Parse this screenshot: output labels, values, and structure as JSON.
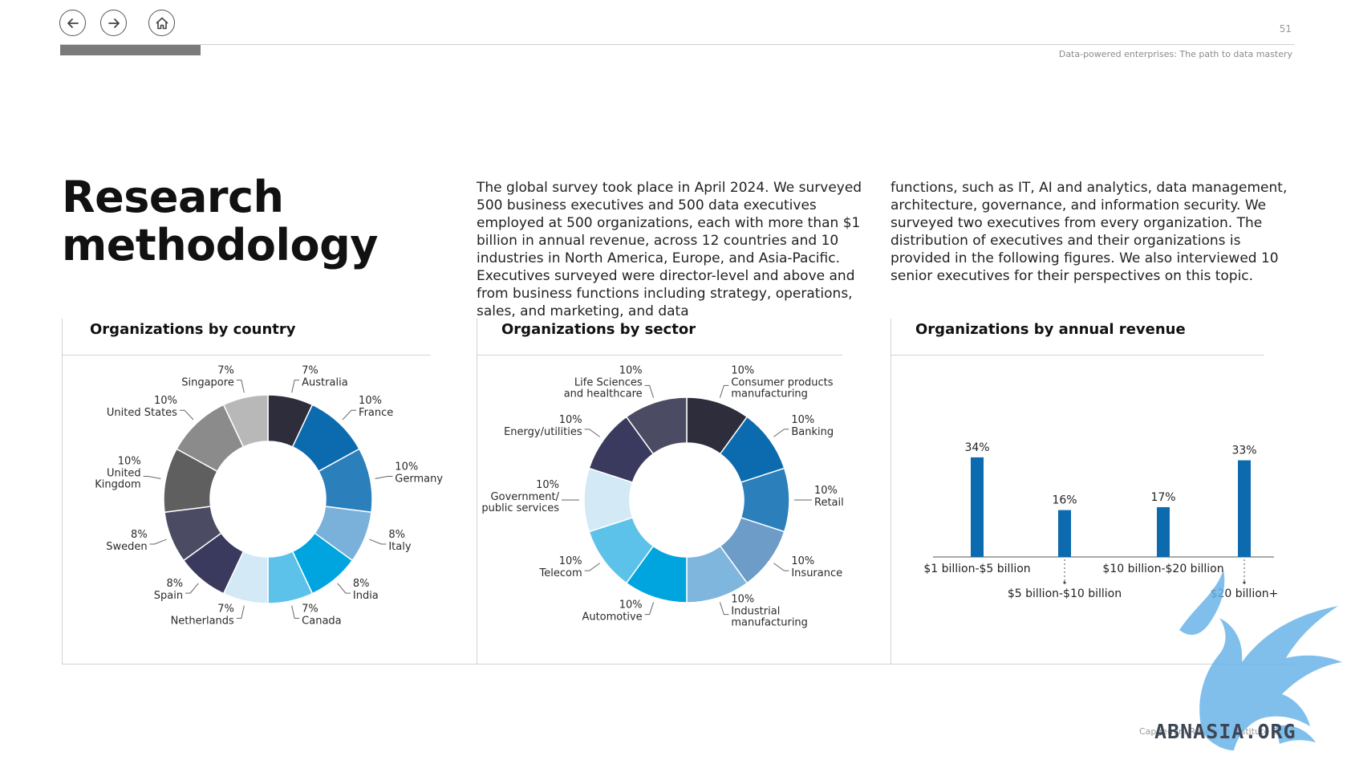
{
  "header": {
    "page_number": "51",
    "running_title": "Data-powered enterprises: The path to data mastery"
  },
  "nav": {
    "back_icon": "arrow-left-icon",
    "forward_icon": "arrow-right-icon",
    "home_icon": "home-icon"
  },
  "page_title_line1": "Research",
  "page_title_line2": "methodology",
  "intro": {
    "col1": "The global survey took place in April 2024. We surveyed 500 business executives and 500 data executives employed at 500 organizations, each with more than $1 billion in annual revenue, across 12 countries and 10 industries in North America, Europe, and Asia-Pacific. Executives surveyed were director-level and above and from business functions including strategy, operations, sales, and marketing, and data",
    "col2": "functions, such as IT, AI and analytics, data management, architecture, governance, and information security. We surveyed two executives from every organization. The distribution of executives and their organizations is provided in the following figures. We also interviewed 10 senior executives for their perspectives on this topic."
  },
  "chart_data": [
    {
      "type": "pie",
      "donut": true,
      "title": "Organizations by country",
      "slices": [
        {
          "label": "Australia",
          "value": 7,
          "pct_label": "7%",
          "color": "#2e2d3c"
        },
        {
          "label": "France",
          "value": 10,
          "pct_label": "10%",
          "color": "#0c6aae"
        },
        {
          "label": "Germany",
          "value": 10,
          "pct_label": "10%",
          "color": "#2b7fbb"
        },
        {
          "label": "Italy",
          "value": 8,
          "pct_label": "8%",
          "color": "#79b1db"
        },
        {
          "label": "India",
          "value": 8,
          "pct_label": "8%",
          "color": "#00a4de"
        },
        {
          "label": "Canada",
          "value": 7,
          "pct_label": "7%",
          "color": "#5cc2ea"
        },
        {
          "label": "Netherlands",
          "value": 7,
          "pct_label": "7%",
          "color": "#d3eaf6"
        },
        {
          "label": "Spain",
          "value": 8,
          "pct_label": "8%",
          "color": "#3a3a5e"
        },
        {
          "label": "Sweden",
          "value": 8,
          "pct_label": "8%",
          "color": "#4b4b63"
        },
        {
          "label": "United Kingdom",
          "value": 10,
          "pct_label": "10%",
          "color": "#5f5f5f"
        },
        {
          "label": "United States",
          "value": 10,
          "pct_label": "10%",
          "color": "#8b8b8b"
        },
        {
          "label": "Singapore",
          "value": 7,
          "pct_label": "7%",
          "color": "#b8b8b8"
        }
      ]
    },
    {
      "type": "pie",
      "donut": true,
      "title": "Organizations by sector",
      "slices": [
        {
          "label": "Consumer products manufacturing",
          "value": 10,
          "pct_label": "10%",
          "color": "#2e2d3c"
        },
        {
          "label": "Banking",
          "value": 10,
          "pct_label": "10%",
          "color": "#0c6aae"
        },
        {
          "label": "Retail",
          "value": 10,
          "pct_label": "10%",
          "color": "#2b7fbb"
        },
        {
          "label": "Insurance",
          "value": 10,
          "pct_label": "10%",
          "color": "#6d9cc9"
        },
        {
          "label": "Industrial manufacturing",
          "value": 10,
          "pct_label": "10%",
          "color": "#7fb6dd"
        },
        {
          "label": "Automotive",
          "value": 10,
          "pct_label": "10%",
          "color": "#00a4de"
        },
        {
          "label": "Telecom",
          "value": 10,
          "pct_label": "10%",
          "color": "#5cc2ea"
        },
        {
          "label": "Government/ public services",
          "value": 10,
          "pct_label": "10%",
          "color": "#d3eaf6"
        },
        {
          "label": "Energy/utilities",
          "value": 10,
          "pct_label": "10%",
          "color": "#3a3a5e"
        },
        {
          "label": "Life Sciences and healthcare",
          "value": 10,
          "pct_label": "10%",
          "color": "#4b4b63"
        }
      ]
    },
    {
      "type": "bar",
      "title": "Organizations by annual revenue",
      "categories": [
        "$1 billion-$5 billion",
        "$5 billion-$10 billion",
        "$10 billion-$20 billion",
        "$20 billion+"
      ],
      "values": [
        34,
        16,
        17,
        33
      ],
      "value_labels": [
        "34%",
        "16%",
        "17%",
        "33%"
      ],
      "ylim": [
        0,
        40
      ],
      "color": "#0c6aae"
    }
  ],
  "footer": {
    "copyright": "Capgemini Research Institute 2024",
    "watermark": "ABNASIA.ORG"
  }
}
